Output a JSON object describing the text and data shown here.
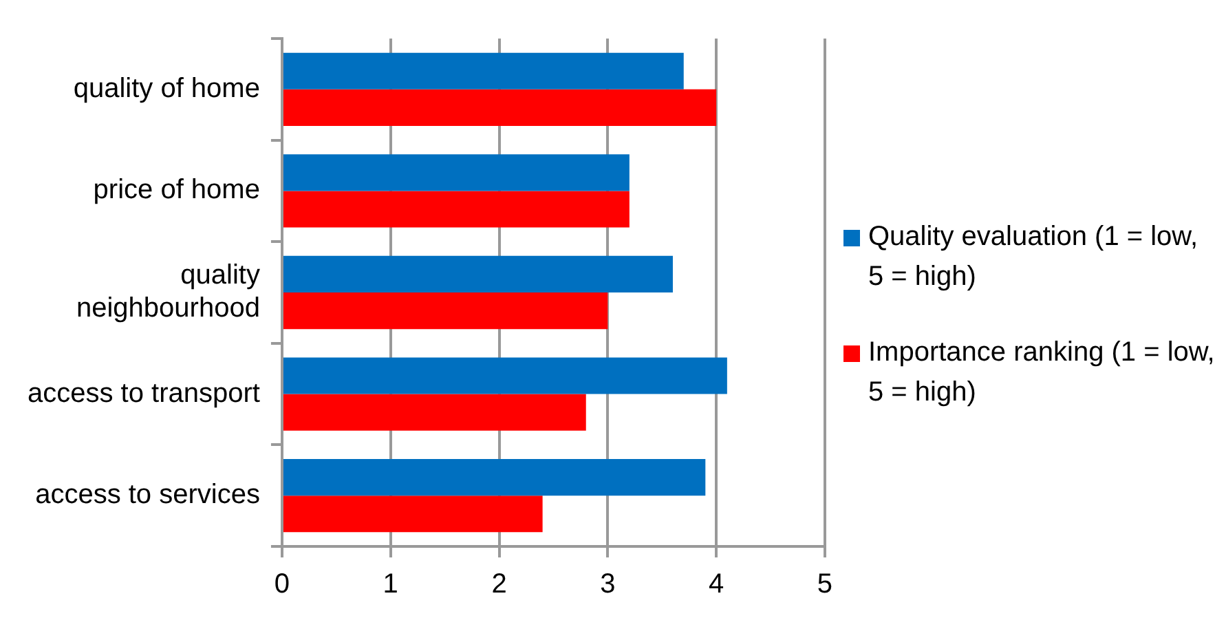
{
  "chart_data": {
    "type": "bar",
    "orientation": "horizontal",
    "categories": [
      "quality of home",
      "price of home",
      "quality neighbourhood",
      "access to transport",
      "access to services"
    ],
    "series": [
      {
        "name": "Quality evaluation (1 = low, 5 = high)",
        "color": "#0070c0",
        "values": [
          3.7,
          3.2,
          3.6,
          4.1,
          3.9
        ]
      },
      {
        "name": "Importance ranking (1 = low, 5 = high)",
        "color": "#ff0000",
        "values": [
          4.0,
          3.2,
          3.0,
          2.8,
          2.4
        ]
      }
    ],
    "xlim": [
      0,
      5
    ],
    "xticks": [
      0,
      1,
      2,
      3,
      4,
      5
    ],
    "grid": "x",
    "legend": "right"
  }
}
